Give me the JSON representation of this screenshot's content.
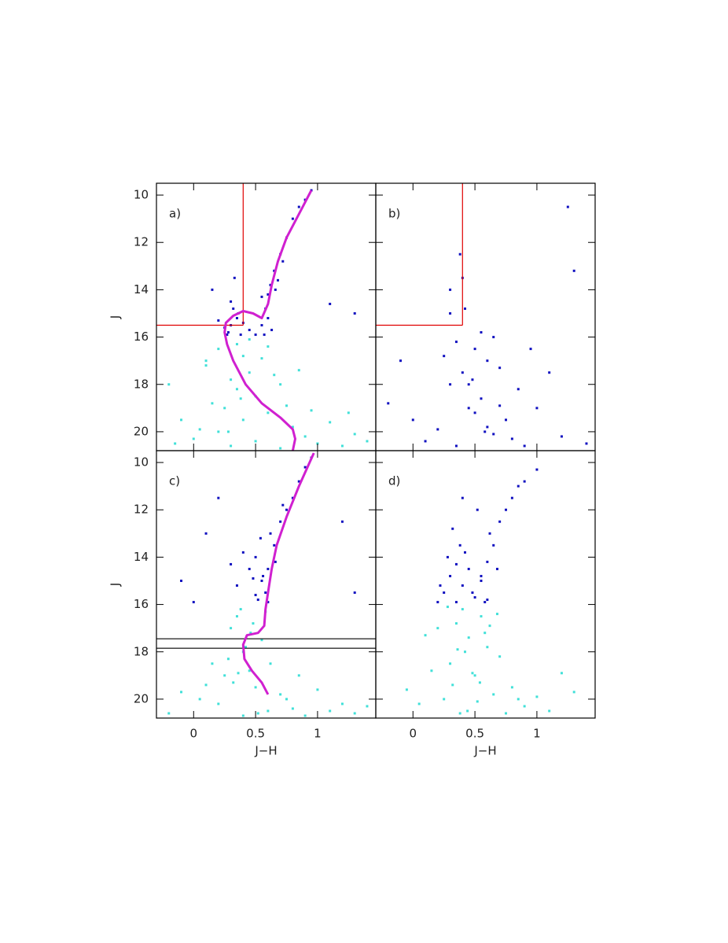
{
  "chart_data": [
    {
      "type": "scatter",
      "label": "a)",
      "y_label": "J",
      "xlim": [
        -0.3,
        1.47
      ],
      "ylim": [
        20.8,
        9.5
      ],
      "xticks": [
        0,
        0.5,
        1
      ],
      "yticks": [
        10,
        12,
        14,
        16,
        18,
        20
      ],
      "x_tick_labels": false,
      "y_tick_labels": true,
      "series": [
        {
          "color": "#1010c0",
          "x": [
            0.3,
            0.35,
            0.28,
            0.32,
            0.38,
            0.25,
            0.3,
            0.36,
            0.55,
            0.58,
            0.6,
            0.62,
            0.57,
            0.65,
            0.6,
            0.7,
            0.66,
            0.75,
            0.8,
            0.72,
            0.85,
            0.9,
            0.45,
            0.5,
            0.2,
            0.33,
            0.95,
            1.1,
            0.15,
            0.4,
            0.63,
            0.55,
            0.68,
            0.27,
            1.3
          ],
          "y": [
            15.5,
            15.2,
            15.8,
            14.8,
            15.9,
            15.6,
            14.5,
            15.0,
            15.5,
            14.8,
            14.2,
            13.8,
            15.9,
            13.2,
            15.2,
            12.5,
            14.0,
            11.8,
            11.0,
            12.8,
            10.5,
            10.2,
            15.7,
            15.9,
            15.3,
            13.5,
            9.8,
            14.6,
            14.0,
            15.4,
            15.7,
            14.3,
            13.6,
            15.9,
            15.0
          ]
        },
        {
          "color": "#40e0d8",
          "x": [
            -0.2,
            -0.1,
            0,
            0.1,
            0.2,
            0.3,
            0.4,
            0.5,
            0.6,
            0.7,
            0.8,
            0.9,
            1.0,
            1.1,
            1.2,
            1.3,
            0.25,
            0.35,
            0.45,
            0.15,
            0.05,
            0.55,
            0.65,
            0.3,
            0.4,
            0.2,
            0.5,
            0.75,
            0.85,
            0.95,
            -0.15,
            1.25,
            0.35,
            0.45,
            0.6,
            0.1,
            0.28,
            0.38,
            0.7,
            1.4
          ],
          "y": [
            18.0,
            19.5,
            20.3,
            17.2,
            16.5,
            17.8,
            16.8,
            18.5,
            19.2,
            18.0,
            19.8,
            20.2,
            20.5,
            19.6,
            20.6,
            20.1,
            19.0,
            16.3,
            17.5,
            18.8,
            19.9,
            16.9,
            17.6,
            20.6,
            19.5,
            20.0,
            20.4,
            18.9,
            17.4,
            19.1,
            20.5,
            19.2,
            18.2,
            16.1,
            16.4,
            17.0,
            20.0,
            18.6,
            20.7,
            20.4
          ]
        }
      ],
      "lines": [
        {
          "color": "#e00000",
          "x": [
            0.4,
            0.4
          ],
          "y": [
            9.5,
            15.5
          ]
        },
        {
          "color": "#e00000",
          "x": [
            -0.3,
            0.4
          ],
          "y": [
            15.5,
            15.5
          ]
        },
        {
          "color": "#d020d0",
          "x": [
            0.95,
            0.85,
            0.75,
            0.68,
            0.63,
            0.6,
            0.55,
            0.48,
            0.4,
            0.32,
            0.26,
            0.25,
            0.27,
            0.32,
            0.42,
            0.55,
            0.7,
            0.8,
            0.82,
            0.8
          ],
          "y": [
            9.8,
            10.8,
            11.8,
            12.8,
            13.8,
            14.6,
            15.2,
            15.0,
            14.9,
            15.1,
            15.4,
            15.8,
            16.3,
            17.0,
            18.0,
            18.8,
            19.4,
            19.9,
            20.3,
            20.8
          ]
        }
      ]
    },
    {
      "type": "scatter",
      "label": "b)",
      "xlim": [
        -0.3,
        1.47
      ],
      "ylim": [
        20.8,
        9.5
      ],
      "xticks": [
        0,
        0.5,
        1
      ],
      "yticks": [
        10,
        12,
        14,
        16,
        18,
        20
      ],
      "x_tick_labels": false,
      "y_tick_labels": false,
      "series": [
        {
          "color": "#1010c0",
          "x": [
            0.3,
            0.35,
            0.4,
            0.45,
            0.5,
            0.55,
            0.6,
            0.65,
            0.7,
            0.75,
            0.8,
            0.85,
            0.9,
            1.0,
            1.1,
            1.2,
            1.3,
            1.4,
            0.25,
            0.2,
            0.1,
            0.0,
            -0.1,
            -0.2,
            0.3,
            0.4,
            0.5,
            0.6,
            0.35,
            0.45,
            0.55,
            0.65,
            0.38,
            0.42,
            0.95,
            1.25,
            0.3,
            0.48,
            0.58,
            0.7
          ],
          "y": [
            15.0,
            16.2,
            17.5,
            18.0,
            19.2,
            18.6,
            19.8,
            20.1,
            18.9,
            19.5,
            20.3,
            18.2,
            20.6,
            19.0,
            17.5,
            20.2,
            13.2,
            20.5,
            16.8,
            19.9,
            20.4,
            19.5,
            17.0,
            18.8,
            14.0,
            13.5,
            16.5,
            17.0,
            20.6,
            19.0,
            15.8,
            16.0,
            12.5,
            14.8,
            16.5,
            10.5,
            18.0,
            17.8,
            20.0,
            17.3
          ]
        }
      ],
      "lines": [
        {
          "color": "#e00000",
          "x": [
            0.4,
            0.4
          ],
          "y": [
            9.5,
            15.5
          ]
        },
        {
          "color": "#e00000",
          "x": [
            -0.3,
            0.4
          ],
          "y": [
            15.5,
            15.5
          ]
        }
      ]
    },
    {
      "type": "scatter",
      "label": "c)",
      "x_label": "J−H",
      "y_label": "J",
      "xlim": [
        -0.3,
        1.47
      ],
      "ylim": [
        20.8,
        9.5
      ],
      "xticks": [
        0,
        0.5,
        1
      ],
      "yticks": [
        10,
        12,
        14,
        16,
        18,
        20
      ],
      "x_tick_labels": true,
      "y_tick_labels": true,
      "series": [
        {
          "color": "#1010c0",
          "x": [
            0.5,
            0.55,
            0.6,
            0.65,
            0.52,
            0.58,
            0.62,
            0.56,
            0.7,
            0.75,
            0.8,
            0.85,
            0.9,
            0.95,
            0.45,
            0.4,
            0.35,
            0.3,
            0.2,
            0.1,
            -0.1,
            0.0,
            1.2,
            1.3,
            0.6,
            0.54,
            0.66,
            0.72,
            0.5,
            0.48
          ],
          "y": [
            14.0,
            15.0,
            14.5,
            13.5,
            15.8,
            15.5,
            13.0,
            14.8,
            12.5,
            12.0,
            11.5,
            10.8,
            10.2,
            9.8,
            14.5,
            13.8,
            15.2,
            14.3,
            11.5,
            13.0,
            15.0,
            15.9,
            12.5,
            15.5,
            15.9,
            13.2,
            14.2,
            11.8,
            15.6,
            14.9
          ]
        },
        {
          "color": "#40e0d8",
          "x": [
            0.3,
            0.35,
            0.4,
            0.45,
            0.5,
            0.55,
            0.25,
            0.2,
            0.6,
            0.7,
            0.8,
            0.9,
            1.0,
            1.1,
            1.2,
            1.3,
            0.15,
            0.05,
            -0.1,
            -0.2,
            0.38,
            0.42,
            0.48,
            0.32,
            0.28,
            0.62,
            0.75,
            0.85,
            0.52,
            0.4,
            0.1,
            1.4,
            0.58,
            0.36,
            0.46
          ],
          "y": [
            17.0,
            16.5,
            18.0,
            18.8,
            19.5,
            17.5,
            19.0,
            20.2,
            20.5,
            19.8,
            20.4,
            20.7,
            19.6,
            20.5,
            20.2,
            20.6,
            18.5,
            20.0,
            19.7,
            20.6,
            16.2,
            17.8,
            16.8,
            19.3,
            18.3,
            18.5,
            20.0,
            19.0,
            20.6,
            20.7,
            19.4,
            20.3,
            16.3,
            18.9,
            17.2
          ]
        }
      ],
      "lines": [
        {
          "color": "#000000",
          "x": [
            -0.3,
            1.47
          ],
          "y": [
            17.45,
            17.45
          ]
        },
        {
          "color": "#000000",
          "x": [
            -0.3,
            1.47
          ],
          "y": [
            17.85,
            17.85
          ]
        },
        {
          "color": "#d020d0",
          "x": [
            0.97,
            0.85,
            0.75,
            0.67,
            0.63,
            0.6,
            0.58,
            0.57,
            0.52,
            0.43,
            0.4,
            0.41,
            0.47,
            0.55,
            0.6
          ],
          "y": [
            9.6,
            11.0,
            12.3,
            13.5,
            14.5,
            15.5,
            16.2,
            16.9,
            17.2,
            17.3,
            17.7,
            18.3,
            18.8,
            19.3,
            19.8
          ]
        }
      ]
    },
    {
      "type": "scatter",
      "label": "d)",
      "x_label": "J−H",
      "xlim": [
        -0.3,
        1.47
      ],
      "ylim": [
        20.8,
        9.5
      ],
      "xticks": [
        0,
        0.5,
        1
      ],
      "yticks": [
        10,
        12,
        14,
        16,
        18,
        20
      ],
      "x_tick_labels": true,
      "y_tick_labels": false,
      "series": [
        {
          "color": "#1010c0",
          "x": [
            0.25,
            0.3,
            0.35,
            0.4,
            0.45,
            0.5,
            0.55,
            0.6,
            0.65,
            0.2,
            0.28,
            0.38,
            0.48,
            0.58,
            0.62,
            0.68,
            0.7,
            0.75,
            0.8,
            0.85,
            0.9,
            1.0,
            0.32,
            0.42,
            0.52,
            0.22,
            0.6,
            0.35,
            0.55,
            0.4
          ],
          "y": [
            15.5,
            14.8,
            15.9,
            15.2,
            14.5,
            15.7,
            15.0,
            14.2,
            13.5,
            15.9,
            14.0,
            13.5,
            15.5,
            15.9,
            13.0,
            14.5,
            12.5,
            12.0,
            11.5,
            11.0,
            10.8,
            10.3,
            12.8,
            13.8,
            12.0,
            15.2,
            15.8,
            14.3,
            14.8,
            11.5
          ]
        },
        {
          "color": "#40e0d8",
          "x": [
            0.2,
            0.3,
            0.4,
            0.5,
            0.6,
            0.7,
            0.8,
            0.9,
            1.0,
            1.1,
            0.25,
            0.35,
            0.45,
            0.55,
            0.65,
            0.75,
            0.15,
            0.05,
            -0.05,
            0.1,
            0.32,
            0.42,
            0.52,
            0.62,
            0.38,
            0.48,
            0.58,
            0.28,
            0.68,
            0.85,
            1.2,
            1.3,
            0.44,
            0.36,
            0.54
          ],
          "y": [
            17.0,
            18.5,
            16.2,
            19.0,
            17.8,
            18.2,
            19.5,
            20.3,
            19.9,
            20.5,
            20.0,
            16.8,
            17.4,
            16.5,
            19.8,
            20.6,
            18.8,
            20.2,
            19.6,
            17.3,
            19.4,
            18.0,
            20.1,
            16.9,
            20.6,
            18.9,
            17.2,
            16.1,
            16.4,
            20.0,
            18.9,
            19.7,
            20.5,
            17.9,
            19.3
          ]
        }
      ],
      "lines": []
    }
  ]
}
